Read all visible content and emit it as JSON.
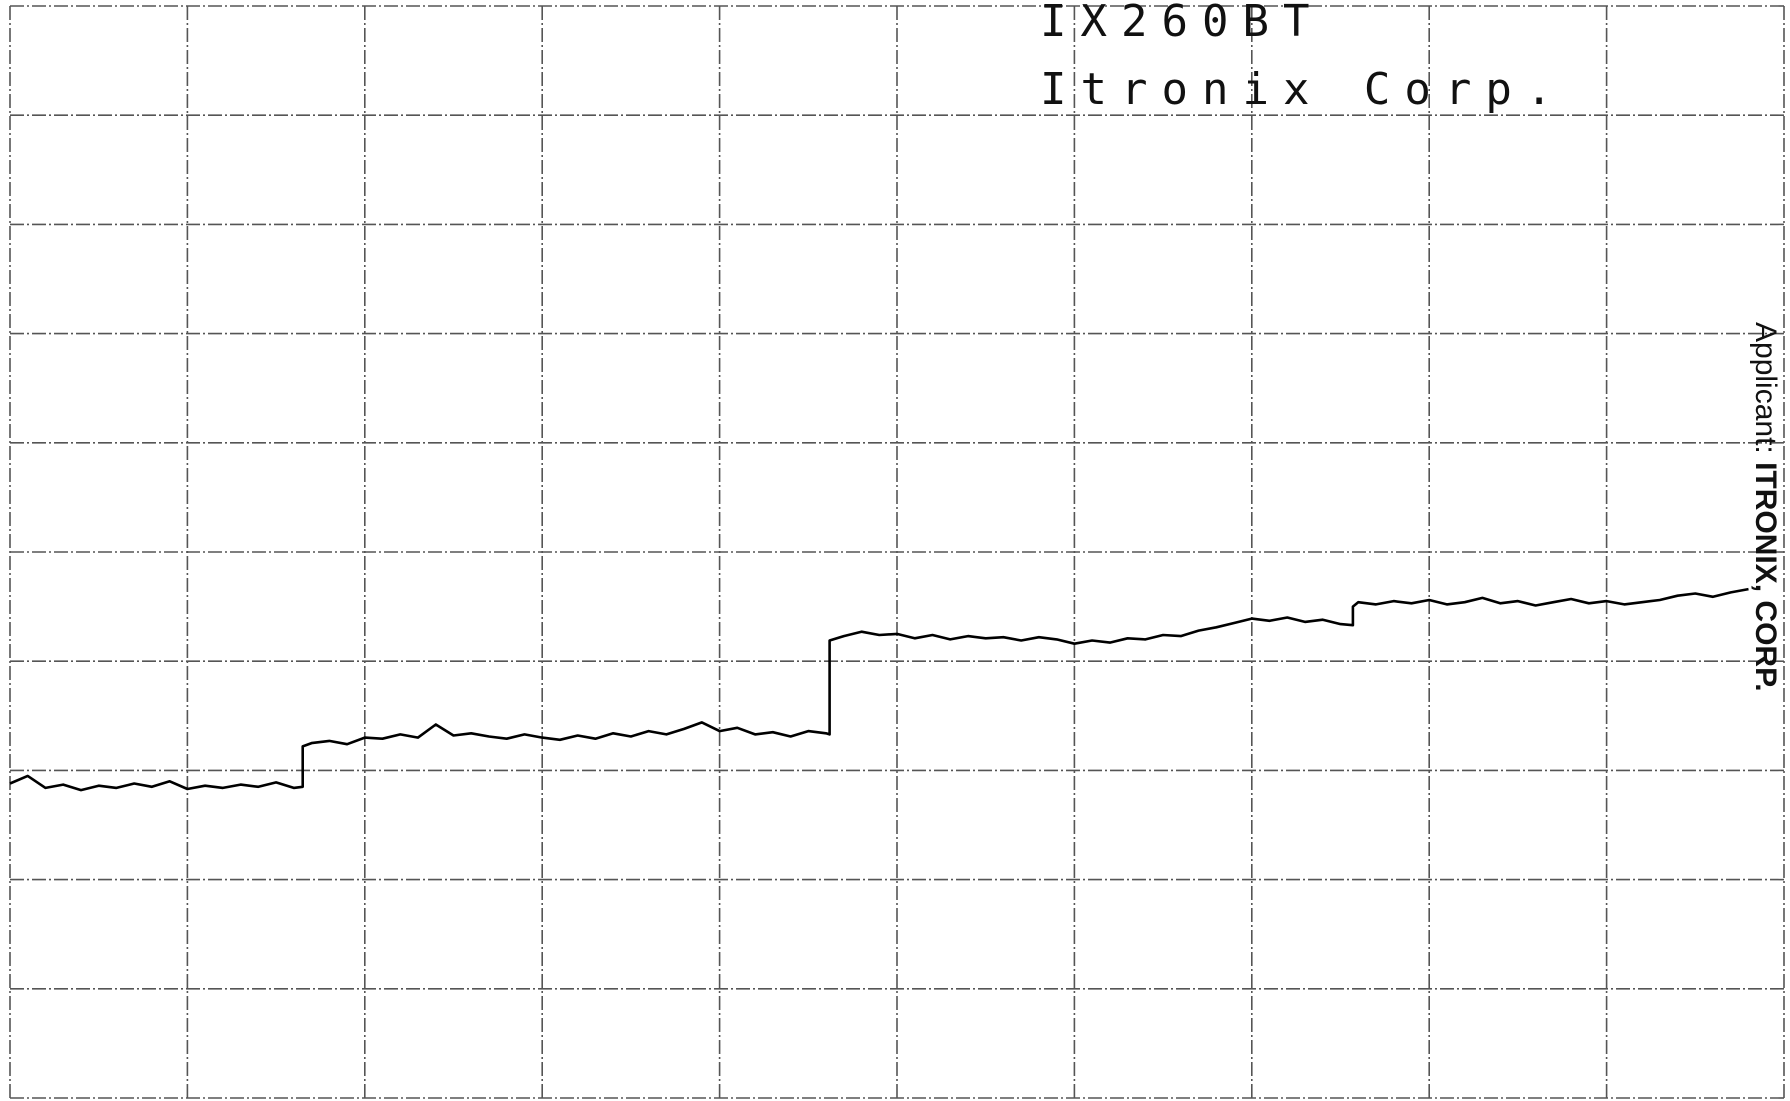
{
  "chart_data": {
    "type": "line",
    "title": "IX260BT",
    "subtitle": "Itronix Corp.",
    "annotation": {
      "label": "Applicant:",
      "value": "ITRONIX, CORP."
    },
    "xlim": [
      0,
      10
    ],
    "ylim": [
      0,
      10
    ],
    "xticks": [
      0,
      1,
      2,
      3,
      4,
      5,
      6,
      7,
      8,
      9,
      10
    ],
    "yticks": [
      0,
      1,
      2,
      3,
      4,
      5,
      6,
      7,
      8,
      9,
      10
    ],
    "grid": true,
    "series": [
      {
        "color": "#000000",
        "x": [
          0.0,
          0.1,
          0.2,
          0.3,
          0.4,
          0.5,
          0.6,
          0.7,
          0.8,
          0.9,
          1.0,
          1.1,
          1.2,
          1.3,
          1.4,
          1.5,
          1.6,
          1.65,
          1.65,
          1.7,
          1.8,
          1.9,
          2.0,
          2.1,
          2.2,
          2.3,
          2.4,
          2.5,
          2.6,
          2.7,
          2.8,
          2.9,
          3.0,
          3.1,
          3.2,
          3.3,
          3.4,
          3.5,
          3.6,
          3.7,
          3.8,
          3.9,
          4.0,
          4.1,
          4.2,
          4.3,
          4.4,
          4.5,
          4.6,
          4.62,
          4.62,
          4.7,
          4.8,
          4.9,
          5.0,
          5.1,
          5.2,
          5.3,
          5.4,
          5.5,
          5.6,
          5.7,
          5.8,
          5.9,
          6.0,
          6.1,
          6.2,
          6.3,
          6.4,
          6.5,
          6.6,
          6.7,
          6.8,
          6.9,
          7.0,
          7.1,
          7.2,
          7.3,
          7.4,
          7.5,
          7.57,
          7.57,
          7.6,
          7.7,
          7.8,
          7.9,
          8.0,
          8.1,
          8.2,
          8.3,
          8.4,
          8.5,
          8.6,
          8.7,
          8.8,
          8.9,
          9.0,
          9.1,
          9.2,
          9.3,
          9.4,
          9.5,
          9.6,
          9.7,
          9.8
        ],
        "values": [
          2.88,
          2.95,
          2.84,
          2.87,
          2.82,
          2.86,
          2.84,
          2.88,
          2.85,
          2.9,
          2.83,
          2.86,
          2.84,
          2.87,
          2.85,
          2.89,
          2.84,
          2.85,
          3.22,
          3.25,
          3.27,
          3.24,
          3.3,
          3.29,
          3.33,
          3.3,
          3.42,
          3.32,
          3.34,
          3.31,
          3.29,
          3.33,
          3.3,
          3.28,
          3.32,
          3.29,
          3.34,
          3.31,
          3.36,
          3.33,
          3.38,
          3.44,
          3.36,
          3.39,
          3.33,
          3.35,
          3.31,
          3.36,
          3.34,
          3.33,
          4.19,
          4.23,
          4.27,
          4.24,
          4.25,
          4.21,
          4.24,
          4.2,
          4.23,
          4.21,
          4.22,
          4.19,
          4.22,
          4.2,
          4.16,
          4.19,
          4.17,
          4.21,
          4.2,
          4.24,
          4.23,
          4.28,
          4.31,
          4.35,
          4.39,
          4.37,
          4.4,
          4.36,
          4.38,
          4.34,
          4.33,
          4.5,
          4.54,
          4.52,
          4.55,
          4.53,
          4.56,
          4.52,
          4.54,
          4.58,
          4.53,
          4.55,
          4.51,
          4.54,
          4.57,
          4.53,
          4.55,
          4.52,
          4.54,
          4.56,
          4.6,
          4.62,
          4.59,
          4.63,
          4.66
        ]
      }
    ]
  }
}
